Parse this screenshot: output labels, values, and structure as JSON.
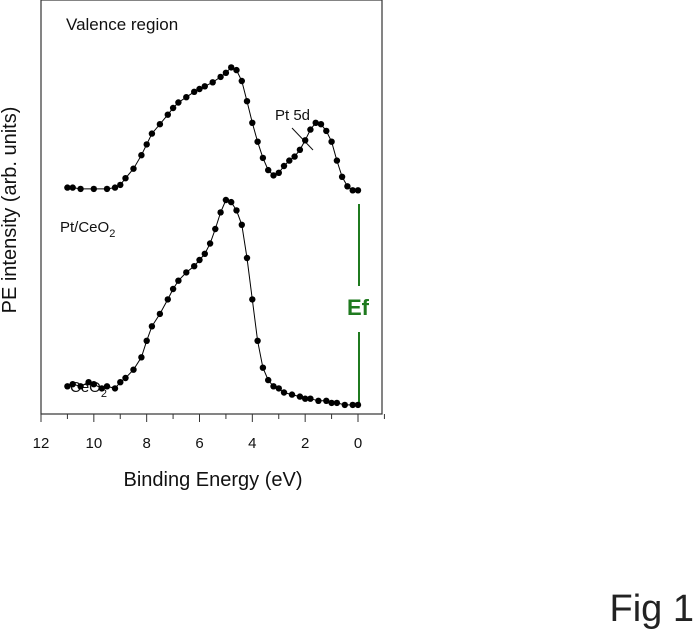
{
  "figure_label": "Fig 1",
  "chart_data": {
    "type": "scatter",
    "title": "Valence region",
    "xlabel": "Binding Energy (eV)",
    "ylabel": "PE intensity (arb. units)",
    "x_reversed": true,
    "xlim": [
      12,
      -1
    ],
    "xticks": [
      "12",
      "10",
      "8",
      "6",
      "4",
      "2",
      "0"
    ],
    "grid": false,
    "annotations": [
      {
        "text": "Pt 5d",
        "target_x": 1.8
      },
      {
        "text": "Ef",
        "x": 0,
        "color": "#1f7a1f"
      }
    ],
    "series": [
      {
        "name": "Pt/CeO2",
        "color": "#000000",
        "points": [
          [
            11.0,
            0.04
          ],
          [
            10.8,
            0.04
          ],
          [
            10.5,
            0.03
          ],
          [
            10.0,
            0.03
          ],
          [
            9.5,
            0.03
          ],
          [
            9.2,
            0.04
          ],
          [
            9.0,
            0.06
          ],
          [
            8.8,
            0.11
          ],
          [
            8.5,
            0.18
          ],
          [
            8.2,
            0.28
          ],
          [
            8.0,
            0.36
          ],
          [
            7.8,
            0.44
          ],
          [
            7.5,
            0.51
          ],
          [
            7.2,
            0.58
          ],
          [
            7.0,
            0.63
          ],
          [
            6.8,
            0.67
          ],
          [
            6.5,
            0.71
          ],
          [
            6.2,
            0.75
          ],
          [
            6.0,
            0.77
          ],
          [
            5.8,
            0.79
          ],
          [
            5.5,
            0.82
          ],
          [
            5.2,
            0.86
          ],
          [
            5.0,
            0.89
          ],
          [
            4.8,
            0.93
          ],
          [
            4.6,
            0.91
          ],
          [
            4.4,
            0.83
          ],
          [
            4.2,
            0.68
          ],
          [
            4.0,
            0.52
          ],
          [
            3.8,
            0.38
          ],
          [
            3.6,
            0.26
          ],
          [
            3.4,
            0.17
          ],
          [
            3.2,
            0.13
          ],
          [
            3.0,
            0.15
          ],
          [
            2.8,
            0.2
          ],
          [
            2.6,
            0.24
          ],
          [
            2.4,
            0.27
          ],
          [
            2.2,
            0.32
          ],
          [
            2.0,
            0.39
          ],
          [
            1.8,
            0.47
          ],
          [
            1.6,
            0.52
          ],
          [
            1.4,
            0.51
          ],
          [
            1.2,
            0.46
          ],
          [
            1.0,
            0.38
          ],
          [
            0.8,
            0.24
          ],
          [
            0.6,
            0.12
          ],
          [
            0.4,
            0.05
          ],
          [
            0.2,
            0.02
          ],
          [
            0.0,
            0.02
          ]
        ]
      },
      {
        "name": "CeO2",
        "color": "#000000",
        "points": [
          [
            11.0,
            0.1
          ],
          [
            10.8,
            0.11
          ],
          [
            10.5,
            0.1
          ],
          [
            10.2,
            0.12
          ],
          [
            10.0,
            0.11
          ],
          [
            9.7,
            0.09
          ],
          [
            9.5,
            0.1
          ],
          [
            9.2,
            0.09
          ],
          [
            9.0,
            0.12
          ],
          [
            8.8,
            0.14
          ],
          [
            8.5,
            0.18
          ],
          [
            8.2,
            0.24
          ],
          [
            8.0,
            0.32
          ],
          [
            7.8,
            0.39
          ],
          [
            7.5,
            0.45
          ],
          [
            7.2,
            0.52
          ],
          [
            7.0,
            0.57
          ],
          [
            6.8,
            0.61
          ],
          [
            6.5,
            0.65
          ],
          [
            6.2,
            0.68
          ],
          [
            6.0,
            0.71
          ],
          [
            5.8,
            0.74
          ],
          [
            5.6,
            0.79
          ],
          [
            5.4,
            0.86
          ],
          [
            5.2,
            0.94
          ],
          [
            5.0,
            1.0
          ],
          [
            4.8,
            0.99
          ],
          [
            4.6,
            0.95
          ],
          [
            4.4,
            0.88
          ],
          [
            4.2,
            0.72
          ],
          [
            4.0,
            0.52
          ],
          [
            3.8,
            0.32
          ],
          [
            3.6,
            0.19
          ],
          [
            3.4,
            0.13
          ],
          [
            3.2,
            0.1
          ],
          [
            3.0,
            0.09
          ],
          [
            2.8,
            0.07
          ],
          [
            2.5,
            0.06
          ],
          [
            2.2,
            0.05
          ],
          [
            2.0,
            0.04
          ],
          [
            1.8,
            0.04
          ],
          [
            1.5,
            0.03
          ],
          [
            1.2,
            0.03
          ],
          [
            1.0,
            0.02
          ],
          [
            0.8,
            0.02
          ],
          [
            0.5,
            0.01
          ],
          [
            0.2,
            0.01
          ],
          [
            0.0,
            0.01
          ]
        ]
      }
    ]
  }
}
